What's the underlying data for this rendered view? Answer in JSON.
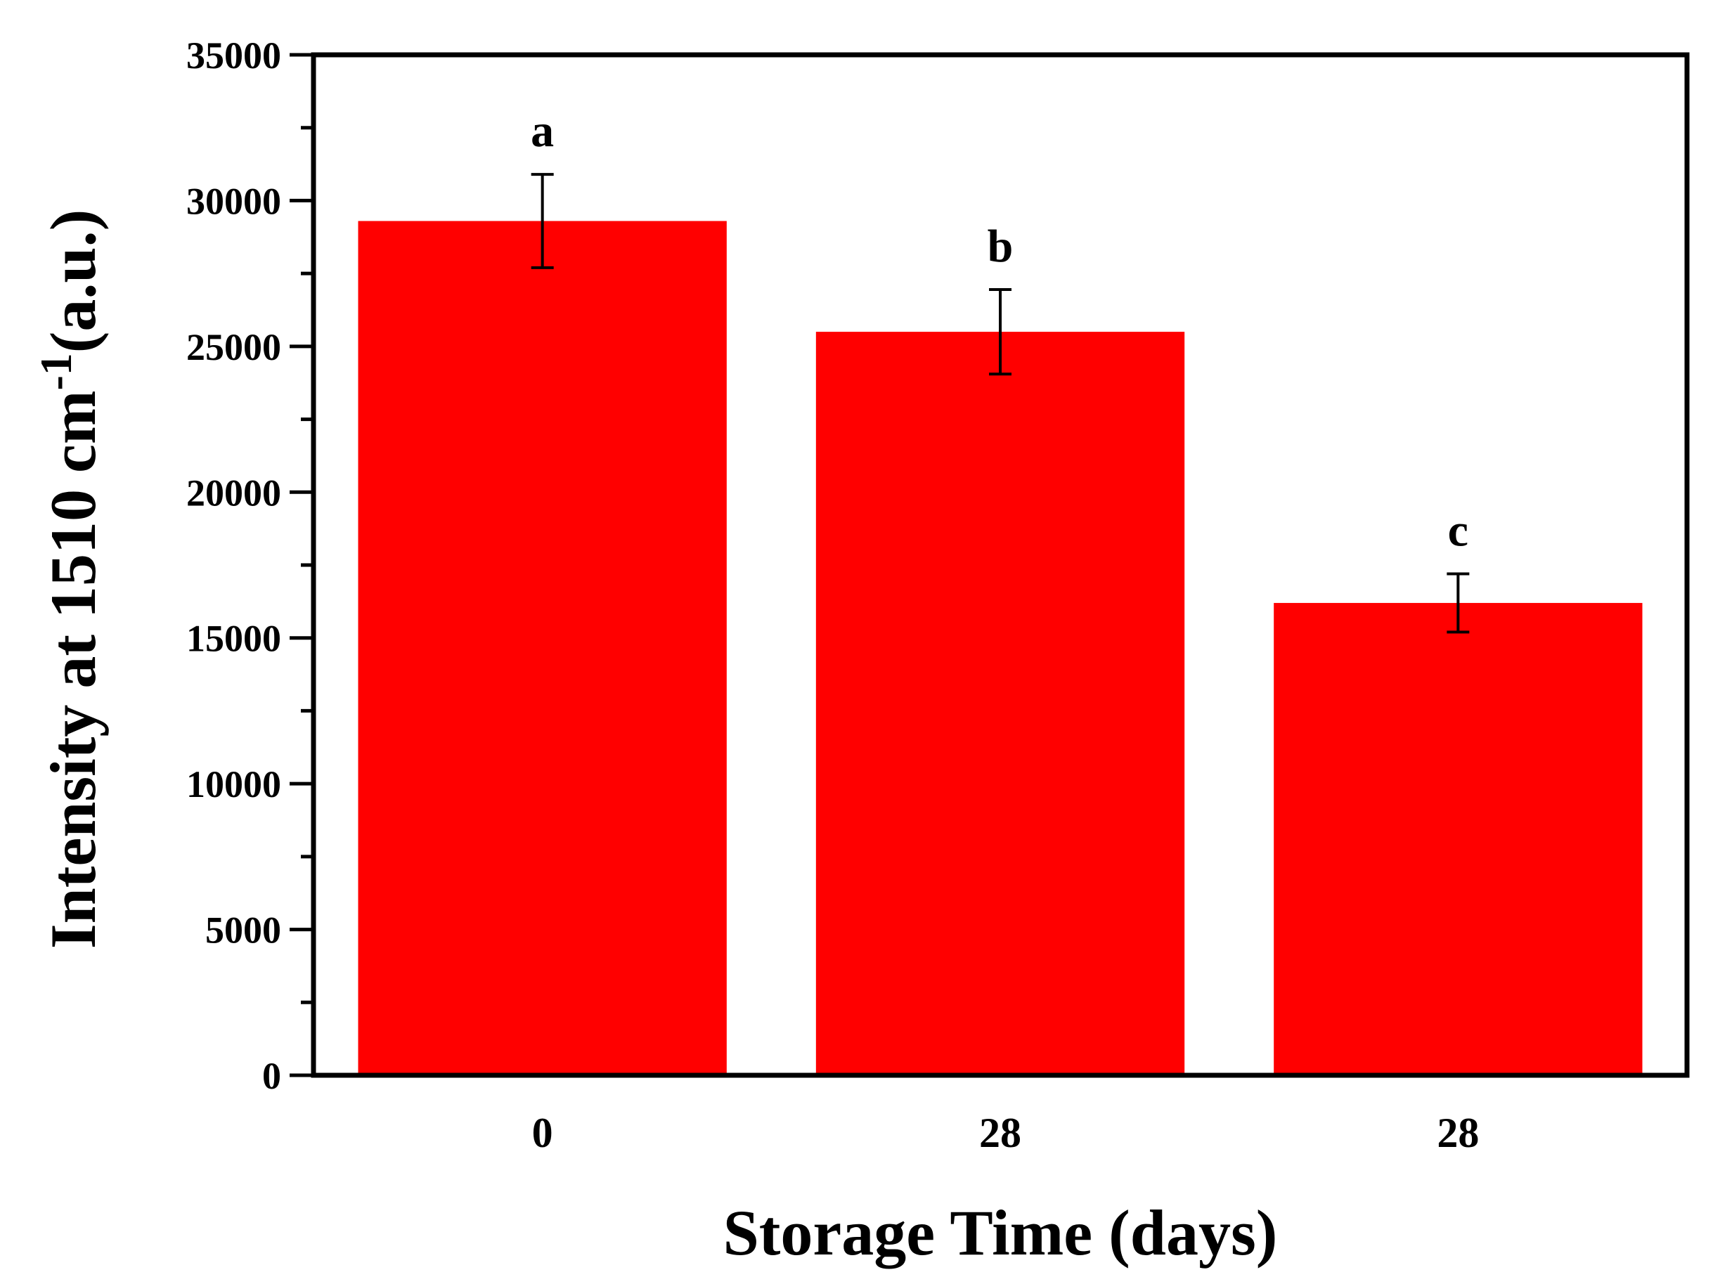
{
  "chart_data": {
    "type": "bar",
    "title": "",
    "xlabel": "Storage Time (days)",
    "ylabel": {
      "main": "Intensity at 1510 cm",
      "superscript": "-1",
      "unit": "(a.u.)"
    },
    "categories": [
      "0",
      "28",
      "28"
    ],
    "values": [
      29300,
      25500,
      16200
    ],
    "errors": [
      1600,
      1450,
      1000
    ],
    "significance_labels": [
      "a",
      "b",
      "c"
    ],
    "ylim": [
      0,
      35000
    ],
    "yticks": [
      "0",
      "5000",
      "10000",
      "15000",
      "20000",
      "25000",
      "30000",
      "35000"
    ],
    "ytick_values": [
      0,
      5000,
      10000,
      15000,
      20000,
      25000,
      30000,
      35000
    ],
    "minor_ytick_step": 2500,
    "bar_color": "#ff0000",
    "grid": false,
    "legend": "none"
  }
}
